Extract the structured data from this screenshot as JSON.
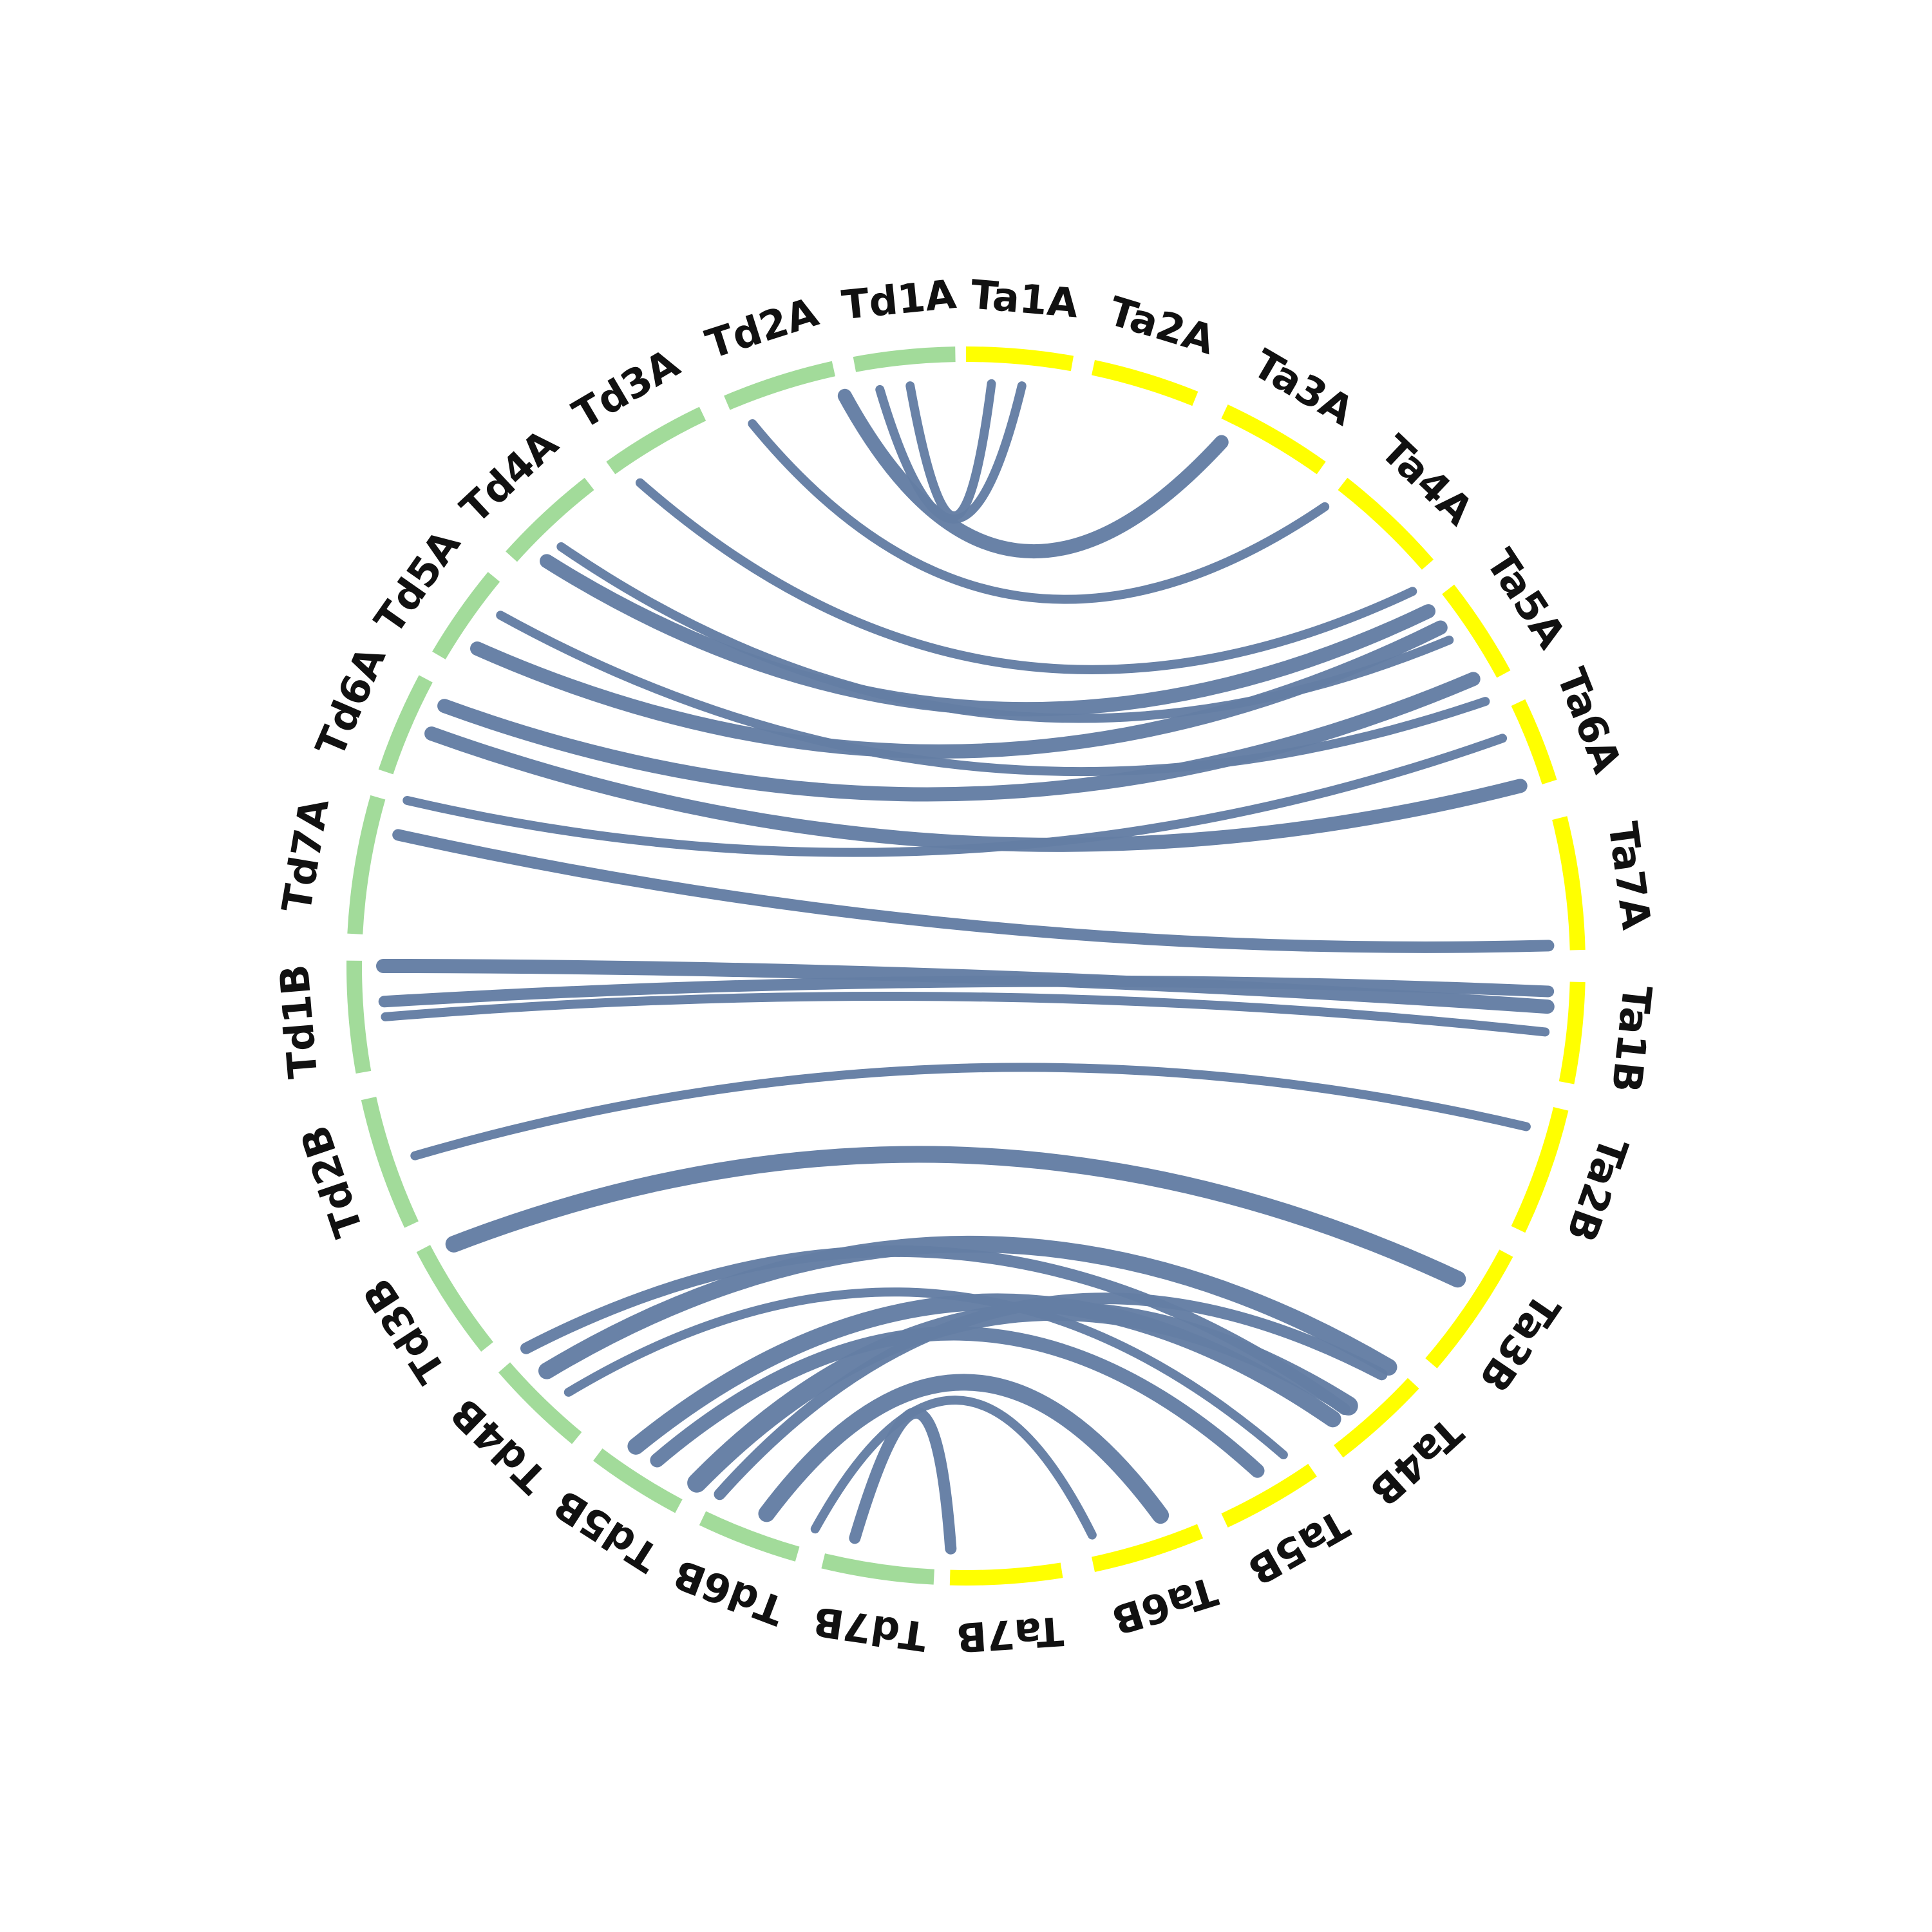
{
  "diagram": {
    "type": "circos",
    "colors": {
      "td_segment": "#a2db9a",
      "ta_segment": "#ffff00",
      "link": "#647ea4",
      "label": "#111111"
    },
    "segments": [
      {
        "id": "Ta1A",
        "label": "Ta1A",
        "group": "ta",
        "start_deg": 0.0,
        "end_deg": 10.0
      },
      {
        "id": "Ta2A",
        "label": "Ta2A",
        "group": "ta",
        "start_deg": 12.0,
        "end_deg": 22.0
      },
      {
        "id": "Ta3A",
        "label": "Ta3A",
        "group": "ta",
        "start_deg": 25.0,
        "end_deg": 35.5
      },
      {
        "id": "Ta4A",
        "label": "Ta4A",
        "group": "ta",
        "start_deg": 38.0,
        "end_deg": 49.0
      },
      {
        "id": "Ta5A",
        "label": "Ta5A",
        "group": "ta",
        "start_deg": 52.0,
        "end_deg": 61.5
      },
      {
        "id": "Ta6A",
        "label": "Ta6A",
        "group": "ta",
        "start_deg": 64.5,
        "end_deg": 72.5
      },
      {
        "id": "Ta7A",
        "label": "Ta7A",
        "group": "ta",
        "start_deg": 76.0,
        "end_deg": 88.5
      },
      {
        "id": "Ta1B",
        "label": "Ta1B",
        "group": "ta",
        "start_deg": 91.5,
        "end_deg": 101.0
      },
      {
        "id": "Ta2B",
        "label": "Ta2B",
        "group": "ta",
        "start_deg": 103.5,
        "end_deg": 115.5
      },
      {
        "id": "Ta3B",
        "label": "Ta3B",
        "group": "ta",
        "start_deg": 118.0,
        "end_deg": 130.5
      },
      {
        "id": "Ta4B",
        "label": "Ta4B",
        "group": "ta",
        "start_deg": 133.0,
        "end_deg": 142.5
      },
      {
        "id": "Ta5B",
        "label": "Ta5B",
        "group": "ta",
        "start_deg": 145.5,
        "end_deg": 155.0
      },
      {
        "id": "Ta6B",
        "label": "Ta6B",
        "group": "ta",
        "start_deg": 157.5,
        "end_deg": 168.0
      },
      {
        "id": "Ta7B",
        "label": "Ta7B",
        "group": "ta",
        "start_deg": 171.0,
        "end_deg": 181.5
      },
      {
        "id": "Td7B",
        "label": "Td7B",
        "group": "td",
        "start_deg": 183.0,
        "end_deg": 193.5
      },
      {
        "id": "Td6B",
        "label": "Td6B",
        "group": "td",
        "start_deg": 196.0,
        "end_deg": 205.5
      },
      {
        "id": "Td5B",
        "label": "Td5B",
        "group": "td",
        "start_deg": 208.0,
        "end_deg": 217.0
      },
      {
        "id": "Td4B",
        "label": "Td4B",
        "group": "td",
        "start_deg": 219.5,
        "end_deg": 229.0
      },
      {
        "id": "Td3B",
        "label": "Td3B",
        "group": "td",
        "start_deg": 231.5,
        "end_deg": 242.5
      },
      {
        "id": "Td2B",
        "label": "Td2B",
        "group": "td",
        "start_deg": 245.0,
        "end_deg": 257.5
      },
      {
        "id": "Td1B",
        "label": "Td1B",
        "group": "td",
        "start_deg": 260.0,
        "end_deg": 270.5
      },
      {
        "id": "Td7A",
        "label": "Td7A",
        "group": "td",
        "start_deg": 273.0,
        "end_deg": 286.0
      },
      {
        "id": "Td6A",
        "label": "Td6A",
        "group": "td",
        "start_deg": 288.5,
        "end_deg": 298.0
      },
      {
        "id": "Td5A",
        "label": "Td5A",
        "group": "td",
        "start_deg": 300.5,
        "end_deg": 309.5
      },
      {
        "id": "Td4A",
        "label": "Td4A",
        "group": "td",
        "start_deg": 312.0,
        "end_deg": 322.0
      },
      {
        "id": "Td3A",
        "label": "Td3A",
        "group": "td",
        "start_deg": 324.5,
        "end_deg": 334.5
      },
      {
        "id": "Td2A",
        "label": "Td2A",
        "group": "td",
        "start_deg": 337.0,
        "end_deg": 347.5
      },
      {
        "id": "Td1A",
        "label": "Td1A",
        "group": "td",
        "start_deg": 349.5,
        "end_deg": 359.0
      }
    ],
    "links": [
      {
        "from_deg": 348.0,
        "to_deg": 26.0,
        "weight": 3
      },
      {
        "from_deg": 351.5,
        "to_deg": 5.5,
        "weight": 1
      },
      {
        "from_deg": 354.5,
        "to_deg": 2.5,
        "weight": 1
      },
      {
        "from_deg": 338.5,
        "to_deg": 38.0,
        "weight": 1
      },
      {
        "from_deg": 326.0,
        "to_deg": 50.0,
        "weight": 1
      },
      {
        "from_deg": 316.0,
        "to_deg": 56.0,
        "weight": 1
      },
      {
        "from_deg": 314.0,
        "to_deg": 52.5,
        "weight": 3
      },
      {
        "from_deg": 307.0,
        "to_deg": 63.0,
        "weight": 1
      },
      {
        "from_deg": 303.0,
        "to_deg": 54.5,
        "weight": 3
      },
      {
        "from_deg": 296.5,
        "to_deg": 60.5,
        "weight": 3
      },
      {
        "from_deg": 293.5,
        "to_deg": 72.0,
        "weight": 3
      },
      {
        "from_deg": 286.5,
        "to_deg": 67.0,
        "weight": 1
      },
      {
        "from_deg": 283.0,
        "to_deg": 88.0,
        "weight": 2
      },
      {
        "from_deg": 270.0,
        "to_deg": 94.0,
        "weight": 3
      },
      {
        "from_deg": 266.5,
        "to_deg": 92.5,
        "weight": 2
      },
      {
        "from_deg": 265.0,
        "to_deg": 96.5,
        "weight": 1
      },
      {
        "from_deg": 251.0,
        "to_deg": 106.0,
        "weight": 1
      },
      {
        "from_deg": 241.5,
        "to_deg": 122.5,
        "weight": 4
      },
      {
        "from_deg": 229.0,
        "to_deg": 139.5,
        "weight": 2
      },
      {
        "from_deg": 226.0,
        "to_deg": 133.5,
        "weight": 4
      },
      {
        "from_deg": 223.0,
        "to_deg": 147.0,
        "weight": 1
      },
      {
        "from_deg": 214.5,
        "to_deg": 141.0,
        "weight": 4
      },
      {
        "from_deg": 212.0,
        "to_deg": 150.0,
        "weight": 3
      },
      {
        "from_deg": 207.5,
        "to_deg": 139.0,
        "weight": 5
      },
      {
        "from_deg": 200.0,
        "to_deg": 160.5,
        "weight": 4
      },
      {
        "from_deg": 195.0,
        "to_deg": 167.5,
        "weight": 1
      },
      {
        "from_deg": 191.0,
        "to_deg": 181.5,
        "weight": 2
      },
      {
        "from_deg": 205.0,
        "to_deg": 134.5,
        "weight": 2
      }
    ]
  }
}
